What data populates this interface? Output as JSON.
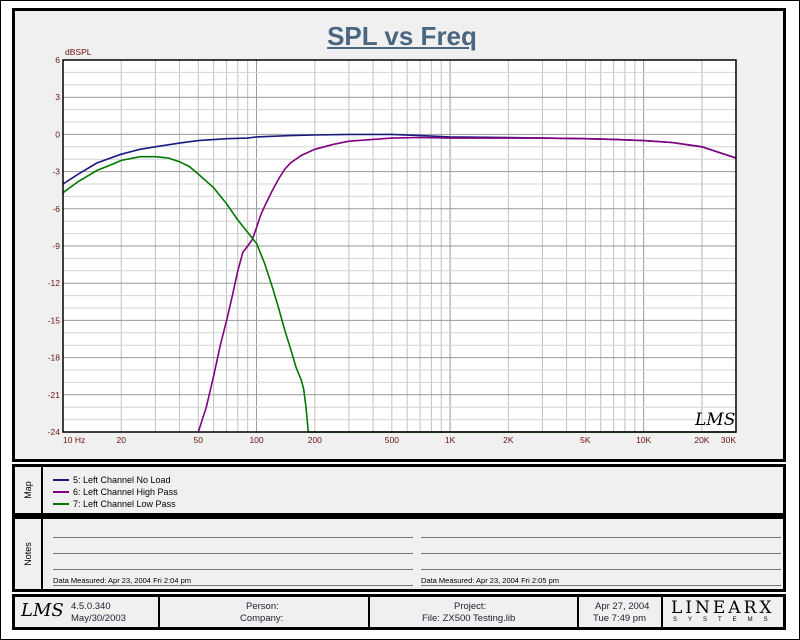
{
  "title": "SPL vs Freq",
  "chart_data": {
    "type": "line",
    "title": "SPL vs Freq",
    "ylabel": "dBSPL",
    "x_scale": "log",
    "xlim": [
      10,
      30000
    ],
    "ylim": [
      -24,
      6
    ],
    "grid": true,
    "yticks": [
      6,
      3,
      0,
      -3,
      -6,
      -9,
      -12,
      -15,
      -18,
      -21,
      -24
    ],
    "ytick_labels": [
      "6",
      "3",
      "0",
      "-3",
      "-6",
      "-9",
      "-12",
      "-15",
      "-18",
      "-21",
      "-24"
    ],
    "xticks": [
      {
        "value": 10,
        "label": "10 Hz"
      },
      {
        "value": 20,
        "label": "20"
      },
      {
        "value": 50,
        "label": "50"
      },
      {
        "value": 100,
        "label": "100"
      },
      {
        "value": 200,
        "label": "200"
      },
      {
        "value": 500,
        "label": "500"
      },
      {
        "value": 1000,
        "label": "1K"
      },
      {
        "value": 2000,
        "label": "2K"
      },
      {
        "value": 5000,
        "label": "5K"
      },
      {
        "value": 10000,
        "label": "10K"
      },
      {
        "value": 20000,
        "label": "20K"
      },
      {
        "value": 30000,
        "label": "30K"
      }
    ],
    "series": [
      {
        "name": "5: Left Channel No Load",
        "color": "#1a1a80",
        "points": [
          [
            10,
            -4.0
          ],
          [
            12,
            -3.2
          ],
          [
            15,
            -2.3
          ],
          [
            20,
            -1.6
          ],
          [
            25,
            -1.2
          ],
          [
            30,
            -1.0
          ],
          [
            40,
            -0.7
          ],
          [
            50,
            -0.5
          ],
          [
            70,
            -0.35
          ],
          [
            90,
            -0.3
          ],
          [
            100,
            -0.2
          ],
          [
            150,
            -0.1
          ],
          [
            200,
            -0.05
          ],
          [
            300,
            0.0
          ],
          [
            500,
            0.0
          ],
          [
            700,
            -0.1
          ],
          [
            1000,
            -0.2
          ],
          [
            2000,
            -0.25
          ],
          [
            3000,
            -0.3
          ],
          [
            5000,
            -0.35
          ],
          [
            7000,
            -0.4
          ],
          [
            10000,
            -0.5
          ],
          [
            14000,
            -0.65
          ],
          [
            20000,
            -1.0
          ],
          [
            25000,
            -1.5
          ],
          [
            30000,
            -1.9
          ]
        ]
      },
      {
        "name": "6: Left Channel High Pass",
        "color": "#800080",
        "points": [
          [
            50,
            -24.0
          ],
          [
            55,
            -22.0
          ],
          [
            60,
            -19.5
          ],
          [
            65,
            -17.0
          ],
          [
            70,
            -15.0
          ],
          [
            75,
            -13.0
          ],
          [
            80,
            -11.0
          ],
          [
            85,
            -9.5
          ],
          [
            90,
            -9.0
          ],
          [
            95,
            -8.5
          ],
          [
            100,
            -7.5
          ],
          [
            105,
            -6.5
          ],
          [
            110,
            -5.8
          ],
          [
            120,
            -4.6
          ],
          [
            130,
            -3.6
          ],
          [
            140,
            -2.8
          ],
          [
            150,
            -2.3
          ],
          [
            170,
            -1.7
          ],
          [
            200,
            -1.2
          ],
          [
            250,
            -0.8
          ],
          [
            300,
            -0.55
          ],
          [
            400,
            -0.4
          ],
          [
            500,
            -0.3
          ],
          [
            700,
            -0.25
          ],
          [
            1000,
            -0.3
          ],
          [
            2000,
            -0.3
          ],
          [
            3000,
            -0.3
          ],
          [
            5000,
            -0.35
          ],
          [
            7000,
            -0.4
          ],
          [
            10000,
            -0.5
          ],
          [
            14000,
            -0.65
          ],
          [
            20000,
            -1.0
          ],
          [
            25000,
            -1.5
          ],
          [
            30000,
            -1.9
          ]
        ]
      },
      {
        "name": "7: Left Channel Low Pass",
        "color": "#007800",
        "points": [
          [
            10,
            -4.7
          ],
          [
            12,
            -3.8
          ],
          [
            15,
            -2.9
          ],
          [
            18,
            -2.4
          ],
          [
            20,
            -2.1
          ],
          [
            25,
            -1.8
          ],
          [
            30,
            -1.8
          ],
          [
            35,
            -1.9
          ],
          [
            40,
            -2.2
          ],
          [
            45,
            -2.6
          ],
          [
            50,
            -3.2
          ],
          [
            60,
            -4.3
          ],
          [
            70,
            -5.6
          ],
          [
            80,
            -6.9
          ],
          [
            90,
            -7.9
          ],
          [
            100,
            -8.8
          ],
          [
            110,
            -10.4
          ],
          [
            120,
            -12.2
          ],
          [
            130,
            -14.0
          ],
          [
            140,
            -15.8
          ],
          [
            150,
            -17.3
          ],
          [
            160,
            -18.8
          ],
          [
            170,
            -19.8
          ],
          [
            175,
            -20.5
          ],
          [
            180,
            -22.0
          ],
          [
            185,
            -24.0
          ]
        ]
      }
    ]
  },
  "legend": {
    "label": "Map",
    "items": [
      {
        "label": "5: Left Channel No Load",
        "color": "#1a1a80"
      },
      {
        "label": "6: Left Channel High Pass",
        "color": "#800080"
      },
      {
        "label": "7: Left Channel Low Pass",
        "color": "#007800"
      }
    ]
  },
  "notes": {
    "label": "Notes",
    "left_measured": "Data Measured: Apr 23, 2004  Fri  2:04 pm",
    "right_measured": "Data Measured: Apr 23, 2004  Fri  2:05 pm"
  },
  "footer": {
    "logo": "LMS",
    "version": "4.5.0.340",
    "version_date": "May/30/2003",
    "person_label": "Person:",
    "company_label": "Company:",
    "project_label": "Project:",
    "file_label": "File: ZX500 Testing.lib",
    "date": "Apr 27, 2004",
    "day_time": "Tue  7:49 pm",
    "brand": "LINEARX",
    "brand_sub": "SYSTEMS"
  },
  "watermark": "LMS"
}
